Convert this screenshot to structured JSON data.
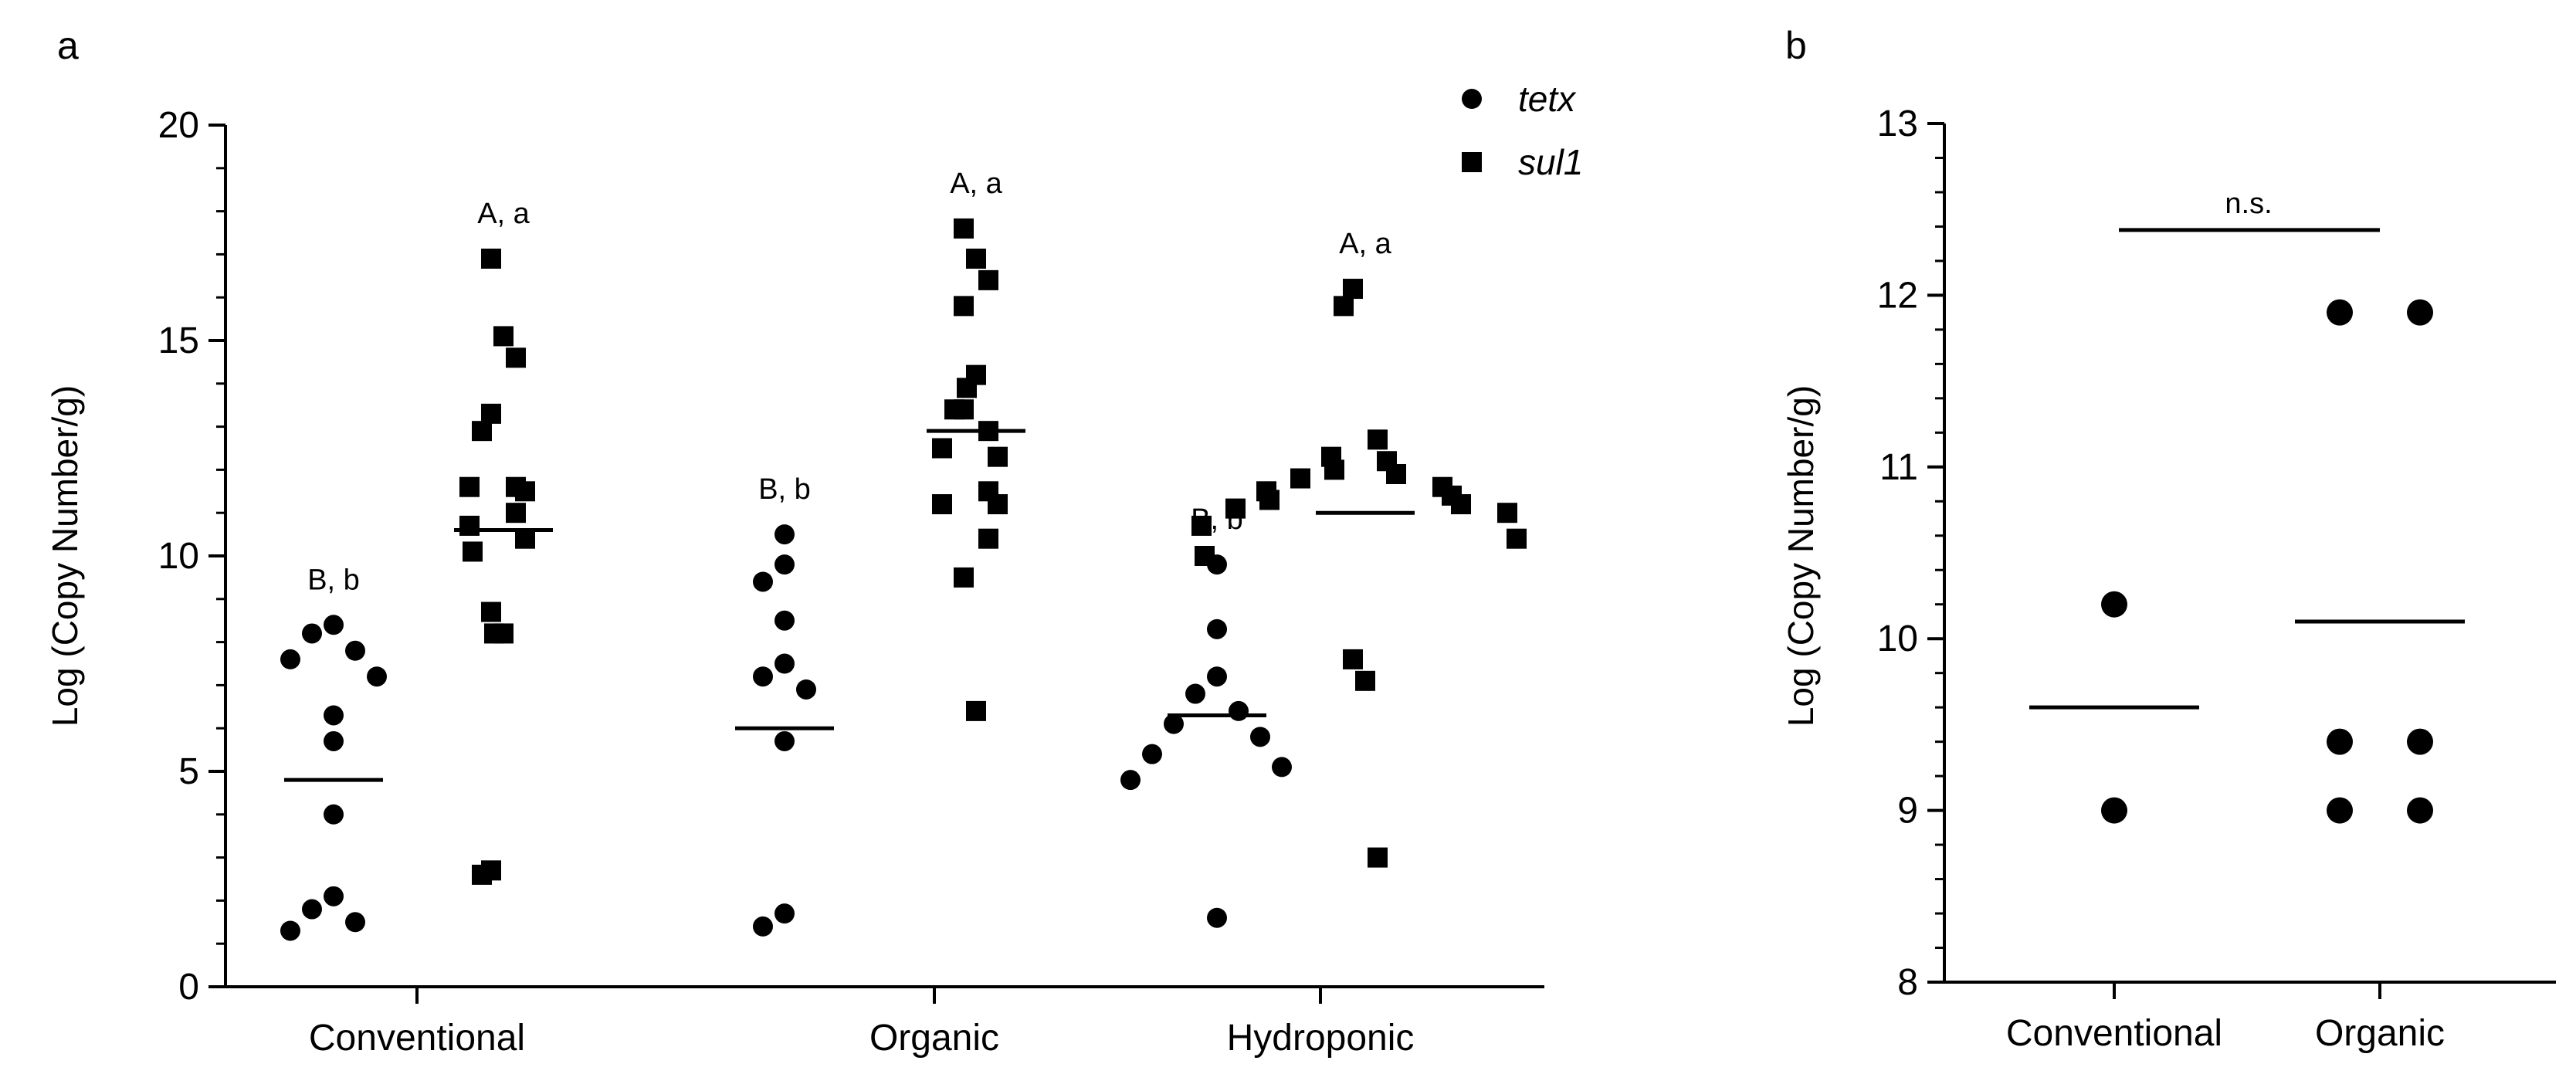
{
  "chart_data": [
    {
      "panel": "a",
      "type": "scatter",
      "title": "",
      "xlabel": "",
      "ylabel": "Log (Copy Number/g)",
      "ylim": [
        0,
        20
      ],
      "yticks": [
        0,
        5,
        10,
        15,
        20
      ],
      "categories": [
        "Conventional",
        "Organic",
        "Hydroponic"
      ],
      "legend": {
        "position": "top-right",
        "entries": [
          {
            "name": "tetx",
            "marker": "circle"
          },
          {
            "name": "sul1",
            "marker": "square"
          }
        ]
      },
      "series": [
        {
          "name": "tetx",
          "marker": "circle",
          "groups": [
            {
              "category": "Conventional",
              "mean": 4.8,
              "label": "B, b",
              "points": [
                8.4,
                8.2,
                7.8,
                7.6,
                7.2,
                6.3,
                5.7,
                4.0,
                2.1,
                1.8,
                1.5,
                1.3
              ]
            },
            {
              "category": "Organic",
              "mean": 6.0,
              "label": "B, b",
              "points": [
                10.5,
                9.8,
                9.4,
                8.5,
                7.5,
                7.2,
                6.9,
                5.7,
                1.7,
                1.4
              ]
            },
            {
              "category": "Hydroponic",
              "mean": 6.3,
              "label": "B, b",
              "points": [
                9.8,
                8.3,
                7.2,
                6.8,
                6.4,
                6.1,
                5.8,
                5.4,
                5.1,
                4.8,
                1.6
              ]
            }
          ]
        },
        {
          "name": "sul1",
          "marker": "square",
          "groups": [
            {
              "category": "Conventional",
              "mean": 10.6,
              "label": "A, a",
              "points": [
                16.9,
                15.1,
                14.6,
                13.3,
                12.9,
                11.6,
                11.6,
                11.5,
                11.0,
                10.7,
                10.4,
                10.1,
                8.7,
                8.2,
                8.2,
                2.7,
                2.6
              ]
            },
            {
              "category": "Organic",
              "mean": 12.9,
              "label": "A, a",
              "points": [
                17.6,
                16.9,
                16.4,
                15.8,
                14.2,
                13.9,
                13.4,
                13.4,
                12.9,
                12.5,
                12.3,
                11.5,
                11.2,
                11.2,
                10.4,
                9.5,
                6.4
              ]
            },
            {
              "category": "Hydroponic",
              "mean": 11.0,
              "label": "A, a",
              "points": [
                16.2,
                15.8,
                12.7,
                12.3,
                12.2,
                12.0,
                11.9,
                11.8,
                11.6,
                11.5,
                11.4,
                11.3,
                11.2,
                11.1,
                11.0,
                10.7,
                10.4,
                10.0,
                7.6,
                7.1,
                3.0
              ]
            }
          ]
        }
      ]
    },
    {
      "panel": "b",
      "type": "scatter",
      "title": "",
      "xlabel": "",
      "ylabel": "Log (Copy Number/g)",
      "ylim": [
        8,
        13
      ],
      "yticks": [
        8,
        9,
        10,
        11,
        12,
        13
      ],
      "categories": [
        "Conventional",
        "Organic"
      ],
      "annotation": "n.s.",
      "groups": [
        {
          "category": "Conventional",
          "mean": 9.6,
          "points": [
            10.2,
            9.0
          ]
        },
        {
          "category": "Organic",
          "mean": 10.1,
          "points": [
            11.9,
            11.9,
            9.4,
            9.4,
            9.0,
            9.0
          ]
        }
      ]
    }
  ]
}
